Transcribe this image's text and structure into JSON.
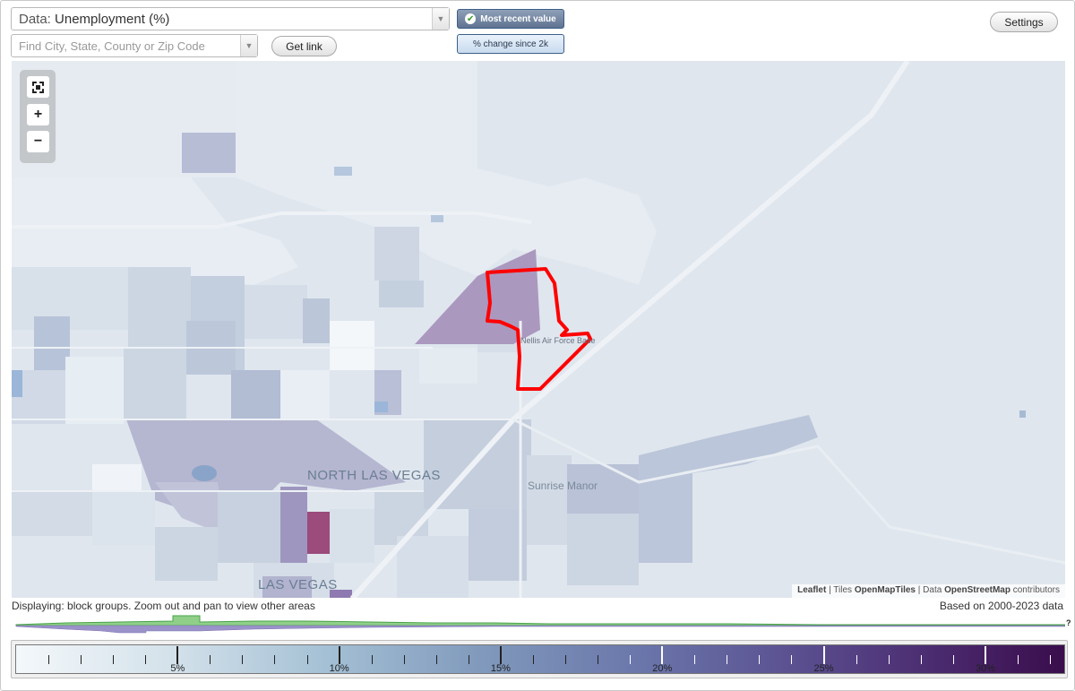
{
  "header": {
    "data_prefix": "Data: ",
    "data_value": "Unemployment (%)",
    "search_placeholder": "Find City, State, County or Zip Code",
    "get_link": "Get link",
    "toggle_recent": "Most recent value",
    "toggle_change": "% change since 2k",
    "settings": "Settings"
  },
  "map": {
    "labels": {
      "north_las_vegas": "NORTH LAS VEGAS",
      "sunrise_manor": "Sunrise Manor",
      "las_vegas": "LAS VEGAS",
      "nellis": "Nellis Air Force Base"
    },
    "zoom": {
      "zoom_in": "+",
      "zoom_out": "−"
    },
    "attribution": {
      "leaflet": "Leaflet",
      "sep1": " | Tiles ",
      "tiles": "OpenMapTiles",
      "sep2": " | Data ",
      "data": "OpenStreetMap",
      "contrib": " contributors"
    }
  },
  "footer": {
    "displaying": "Displaying: block groups. Zoom out and pan to view other areas",
    "based_on": "Based on 2000-2023 data",
    "help": "?",
    "legend_labels": [
      "5%",
      "10%",
      "15%",
      "20%",
      "25%",
      "30%"
    ],
    "legend_label_values": [
      5,
      10,
      15,
      20,
      25,
      30
    ],
    "legend_max": 32.5
  },
  "colors": {
    "highlight_outline": "#ff0000",
    "histogram_upper": "#8fcf88",
    "histogram_lower": "#9a92c9"
  }
}
